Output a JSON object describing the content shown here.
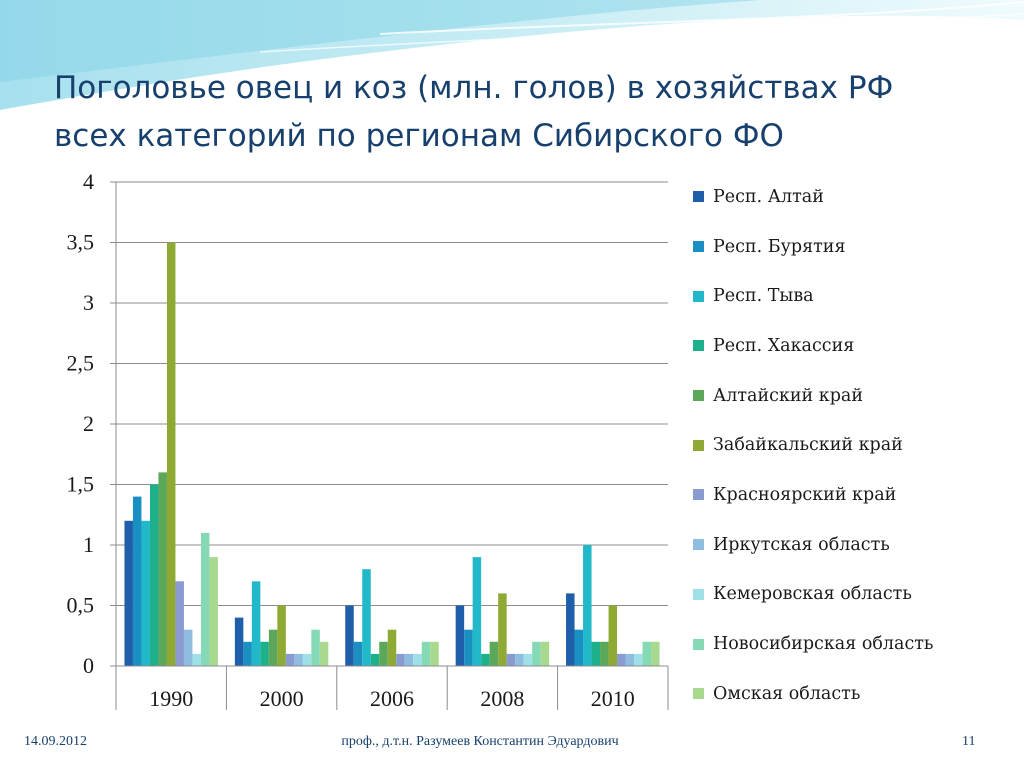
{
  "slide": {
    "title_line1": "Поголовье овец и коз (млн. голов) в хозяйствах РФ",
    "title_line2": "всех категорий по регионам Сибирского ФО",
    "footer_date": "14.09.2012",
    "footer_author": "проф., д.т.н. Разумеев Константин Эдуардович",
    "footer_page": "11"
  },
  "chart_data": {
    "type": "bar",
    "categories": [
      "1990",
      "2000",
      "2006",
      "2008",
      "2010"
    ],
    "ylim": [
      0,
      4
    ],
    "yticks": [
      "0",
      "0,5",
      "1",
      "1,5",
      "2",
      "2,5",
      "3",
      "3,5",
      "4"
    ],
    "grid": true,
    "legend_position": "right",
    "series": [
      {
        "name": "Респ. Алтай",
        "color": "#1f5ea8",
        "values": [
          1.2,
          0.4,
          0.5,
          0.5,
          0.6
        ]
      },
      {
        "name": "Респ. Бурятия",
        "color": "#1a8fc2",
        "values": [
          1.4,
          0.2,
          0.2,
          0.3,
          0.3
        ]
      },
      {
        "name": "Респ. Тыва",
        "color": "#21b8c9",
        "values": [
          1.2,
          0.7,
          0.8,
          0.9,
          1.0
        ]
      },
      {
        "name": "Респ. Хакассия",
        "color": "#1db08a",
        "values": [
          1.5,
          0.2,
          0.1,
          0.1,
          0.2
        ]
      },
      {
        "name": "Алтайский край",
        "color": "#5ca85a",
        "values": [
          1.6,
          0.3,
          0.2,
          0.2,
          0.2
        ]
      },
      {
        "name": "Забайкальский край",
        "color": "#8eaa35",
        "values": [
          3.5,
          0.5,
          0.3,
          0.6,
          0.5
        ]
      },
      {
        "name": "Красноярский край",
        "color": "#8a9bd2",
        "values": [
          0.7,
          0.1,
          0.1,
          0.1,
          0.1
        ]
      },
      {
        "name": "Иркутская область",
        "color": "#8fbde0",
        "values": [
          0.3,
          0.1,
          0.1,
          0.1,
          0.1
        ]
      },
      {
        "name": "Кемеровская область",
        "color": "#9fdfe8",
        "values": [
          0.1,
          0.1,
          0.1,
          0.1,
          0.1
        ]
      },
      {
        "name": "Новосибирская область",
        "color": "#86d9b5",
        "values": [
          1.1,
          0.3,
          0.2,
          0.2,
          0.2
        ]
      },
      {
        "name": "Омская область",
        "color": "#a9d98f",
        "values": [
          0.9,
          0.2,
          0.2,
          0.2,
          0.2
        ]
      }
    ]
  }
}
